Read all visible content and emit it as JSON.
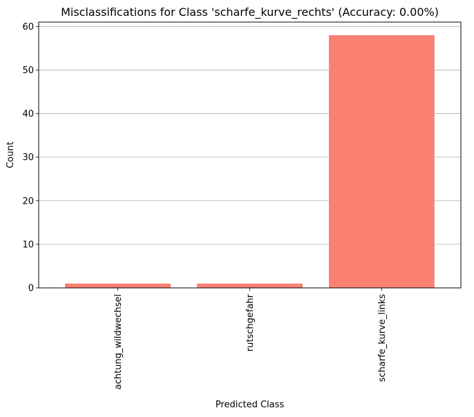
{
  "chart_data": {
    "type": "bar",
    "title": "Misclassifications for Class 'scharfe_kurve_rechts' (Accuracy: 0.00%)",
    "xlabel": "Predicted Class",
    "ylabel": "Count",
    "categories": [
      "achtung_wildwechsel",
      "rutschgefahr",
      "scharfe_kurve_links"
    ],
    "values": [
      1,
      1,
      58
    ],
    "ylim": [
      0,
      61
    ],
    "yticks": [
      0,
      10,
      20,
      30,
      40,
      50,
      60
    ],
    "grid": "y-major",
    "bar_color": "#fa8072",
    "grid_color": "#b0b0b0"
  }
}
